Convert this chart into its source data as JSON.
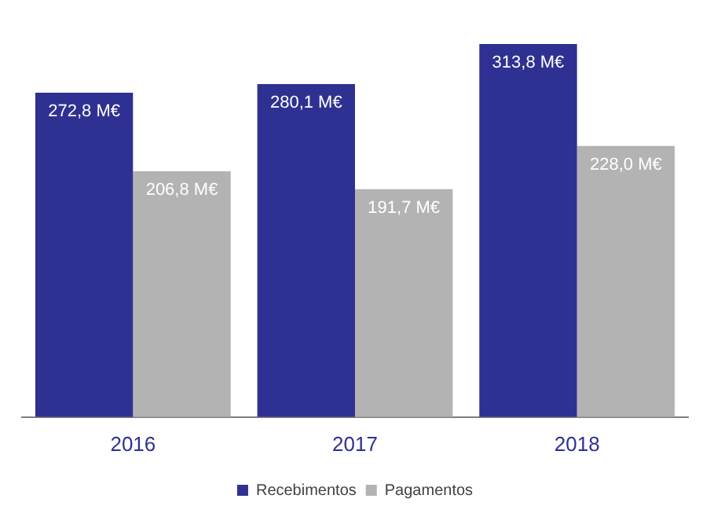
{
  "chart_data": {
    "type": "bar",
    "categories": [
      "2016",
      "2017",
      "2018"
    ],
    "legend": "bottom",
    "series": [
      {
        "name": "Recebimentos",
        "color": "#2e3192",
        "values": [
          272.8,
          280.1,
          313.8
        ],
        "value_labels": [
          "272,8 M€",
          "280,1 M€",
          "313,8 M€"
        ]
      },
      {
        "name": "Pagamentos",
        "color": "#b3b3b3",
        "values": [
          206.8,
          191.7,
          228.0
        ],
        "value_labels": [
          "206,8 M€",
          "191,7 M€",
          "228,0 M€"
        ]
      }
    ]
  }
}
